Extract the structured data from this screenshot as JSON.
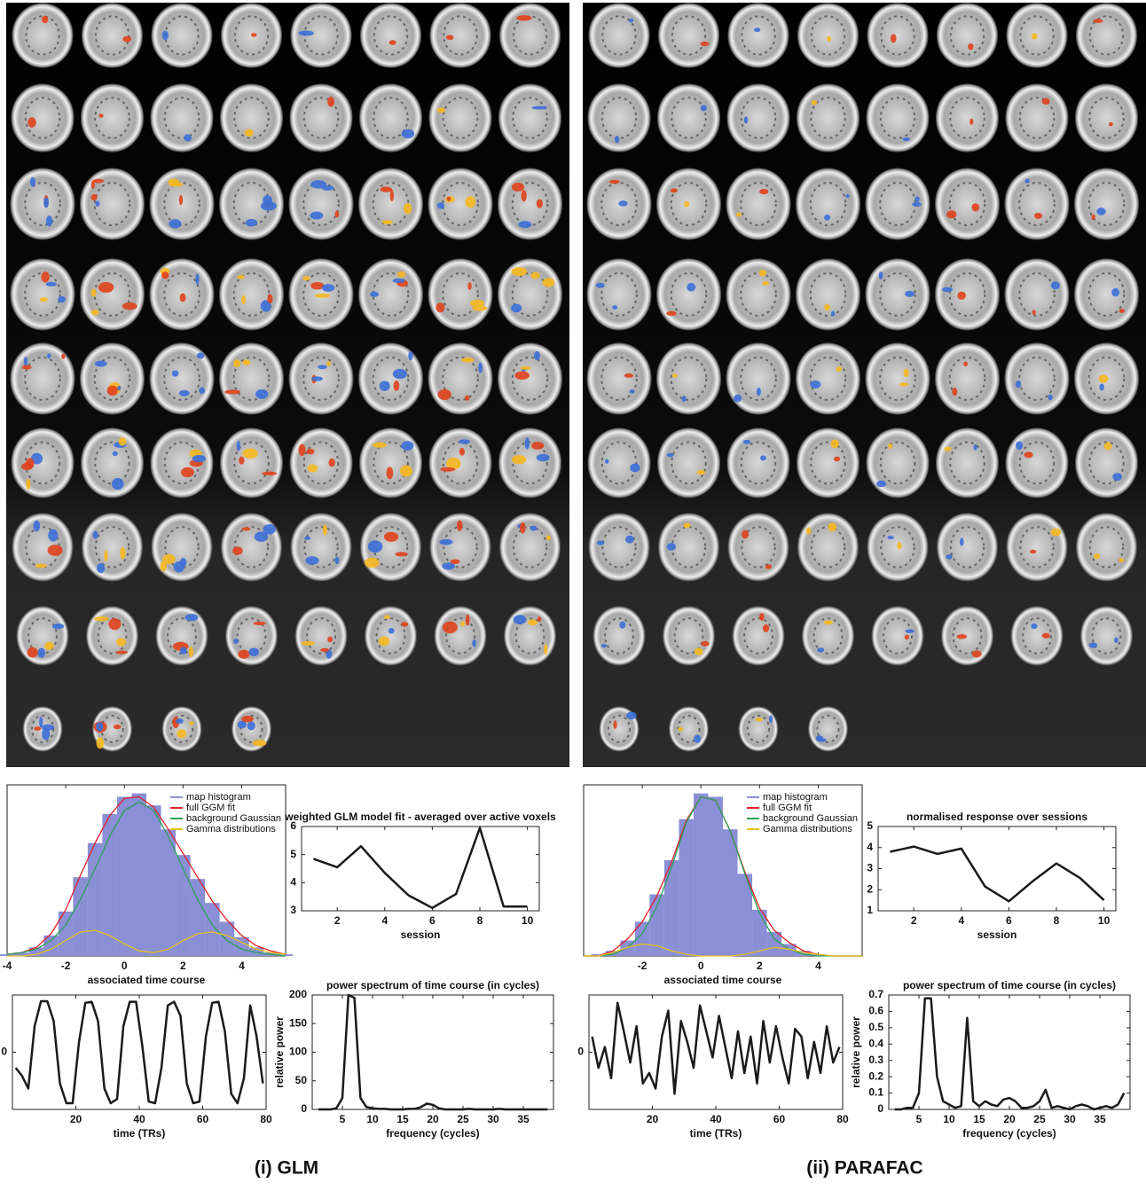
{
  "captions": [
    "(i) GLM",
    "(ii) PARAFAC"
  ],
  "chart_data": [
    {
      "type": "bar",
      "xlabel": "associated time course",
      "x": [
        -4,
        -3.5,
        -3,
        -2.5,
        -2,
        -1.5,
        -1,
        -0.5,
        0,
        0.5,
        1,
        1.5,
        2,
        2.5,
        3,
        3.5,
        4,
        4.5,
        5,
        5.5
      ],
      "xlim": [
        -4,
        5.5
      ],
      "xticks": [
        -4,
        -2,
        0,
        2,
        4
      ],
      "ylim": [
        0,
        1
      ],
      "legend": "upper right",
      "series": [
        {
          "name": "map histogram",
          "color": "#8b8fd6",
          "type": "bar",
          "values": [
            0.01,
            0.02,
            0.05,
            0.12,
            0.26,
            0.46,
            0.66,
            0.83,
            0.93,
            0.95,
            0.88,
            0.74,
            0.59,
            0.45,
            0.31,
            0.2,
            0.11,
            0.05,
            0.02,
            0.01
          ]
        },
        {
          "name": "full GGM fit",
          "color": "#e0202a",
          "type": "line",
          "values": [
            0.01,
            0.02,
            0.05,
            0.13,
            0.27,
            0.47,
            0.66,
            0.82,
            0.92,
            0.93,
            0.87,
            0.74,
            0.6,
            0.46,
            0.32,
            0.21,
            0.12,
            0.06,
            0.03,
            0.01
          ]
        },
        {
          "name": "background Gaussian",
          "color": "#2aa05a",
          "type": "line",
          "values": [
            0.01,
            0.02,
            0.04,
            0.09,
            0.18,
            0.33,
            0.51,
            0.7,
            0.85,
            0.9,
            0.85,
            0.7,
            0.51,
            0.33,
            0.18,
            0.09,
            0.04,
            0.02,
            0.01,
            0
          ]
        },
        {
          "name": "Gamma distributions",
          "color": "#e8c020",
          "type": "line",
          "values": [
            0,
            0,
            0.01,
            0.04,
            0.09,
            0.14,
            0.15,
            0.12,
            0.07,
            0.03,
            0.02,
            0.04,
            0.09,
            0.13,
            0.14,
            0.12,
            0.08,
            0.04,
            0.02,
            0.01
          ]
        }
      ]
    },
    {
      "type": "line",
      "title": "weighted GLM model fit - averaged over active voxels",
      "xlabel": "session",
      "x": [
        1,
        2,
        3,
        4,
        5,
        6,
        7,
        8,
        9,
        10
      ],
      "values": [
        4.85,
        4.55,
        5.3,
        4.35,
        3.55,
        3.1,
        3.6,
        5.95,
        3.15,
        3.15
      ],
      "color": "#1a1a1a",
      "xlim": [
        0.5,
        10.5
      ],
      "xticks": [
        2,
        4,
        6,
        8,
        10
      ],
      "ylim": [
        3,
        6
      ],
      "yticks": [
        3,
        4,
        5,
        6
      ]
    },
    {
      "type": "line",
      "xlabel": "time (TRs)",
      "x": [
        1,
        3,
        5,
        7,
        9,
        11,
        13,
        15,
        17,
        19,
        21,
        23,
        25,
        27,
        29,
        31,
        33,
        35,
        37,
        39,
        41,
        43,
        45,
        47,
        49,
        51,
        53,
        55,
        57,
        59,
        61,
        63,
        65,
        67,
        69,
        71,
        73,
        75,
        77,
        79
      ],
      "values": [
        -0.3,
        -0.45,
        -0.7,
        0.5,
        0.98,
        0.98,
        0.6,
        -0.6,
        -0.98,
        -0.98,
        0.2,
        0.95,
        0.97,
        0.6,
        -0.7,
        -0.98,
        -0.9,
        0.5,
        0.97,
        0.97,
        0.1,
        -0.95,
        -0.98,
        -0.3,
        0.9,
        0.97,
        0.7,
        -0.6,
        -0.98,
        -0.95,
        0.3,
        0.95,
        0.97,
        0.4,
        -0.8,
        -0.98,
        -0.5,
        0.9,
        0.3,
        -0.6
      ],
      "color": "#1a1a1a",
      "xlim": [
        0,
        80
      ],
      "xticks": [
        20,
        40,
        60,
        80
      ],
      "ylim": [
        -1.1,
        1.1
      ],
      "yticks": [
        0
      ]
    },
    {
      "type": "line",
      "title": "power spectrum of time course (in cycles)",
      "xlabel": "frequency (cycles)",
      "ylabel": "relative power",
      "x": [
        1,
        2,
        3,
        4,
        5,
        6,
        7,
        8,
        9,
        10,
        11,
        12,
        13,
        14,
        15,
        16,
        17,
        18,
        19,
        20,
        21,
        22,
        23,
        24,
        25,
        26,
        27,
        28,
        29,
        30,
        31,
        32,
        33,
        34,
        35,
        36,
        37,
        38,
        39
      ],
      "values": [
        0,
        0,
        0,
        2,
        20,
        200,
        195,
        20,
        4,
        2,
        1,
        1,
        0,
        0,
        0,
        1,
        1,
        4,
        10,
        8,
        2,
        0,
        0,
        0,
        0,
        1,
        0,
        0,
        0,
        0,
        1,
        0,
        0,
        0,
        0,
        0,
        0,
        0,
        0
      ],
      "color": "#1a1a1a",
      "xlim": [
        0,
        40
      ],
      "xticks": [
        5,
        10,
        15,
        20,
        25,
        30,
        35
      ],
      "ylim": [
        0,
        200
      ],
      "yticks": [
        0,
        50,
        100,
        150,
        200
      ]
    },
    {
      "type": "bar",
      "xlabel": "associated time course",
      "x": [
        -4,
        -3.5,
        -3,
        -2.5,
        -2,
        -1.5,
        -1,
        -0.5,
        0,
        0.5,
        1,
        1.5,
        2,
        2.5,
        3,
        3.5,
        4,
        4.5,
        5,
        5.5
      ],
      "xlim": [
        -4,
        5.5
      ],
      "xticks": [
        -2,
        0,
        2,
        4
      ],
      "ylim": [
        0,
        1
      ],
      "legend": "upper right",
      "series": [
        {
          "name": "map histogram",
          "color": "#8b8fd6",
          "type": "bar",
          "values": [
            0,
            0.01,
            0.03,
            0.09,
            0.2,
            0.36,
            0.56,
            0.8,
            0.95,
            0.93,
            0.74,
            0.48,
            0.27,
            0.14,
            0.07,
            0.03,
            0.01,
            0,
            0,
            0
          ]
        },
        {
          "name": "full GGM fit",
          "color": "#e0202a",
          "type": "line",
          "values": [
            0,
            0,
            0.03,
            0.1,
            0.2,
            0.35,
            0.55,
            0.79,
            0.93,
            0.91,
            0.73,
            0.49,
            0.28,
            0.15,
            0.08,
            0.03,
            0.01,
            0,
            0,
            0
          ]
        },
        {
          "name": "background Gaussian",
          "color": "#2aa05a",
          "type": "line",
          "values": [
            0,
            0,
            0.01,
            0.05,
            0.13,
            0.29,
            0.52,
            0.78,
            0.93,
            0.91,
            0.73,
            0.48,
            0.25,
            0.1,
            0.04,
            0.01,
            0,
            0,
            0,
            0
          ]
        },
        {
          "name": "Gamma distributions",
          "color": "#e8c020",
          "type": "line",
          "values": [
            0,
            0,
            0.02,
            0.05,
            0.07,
            0.06,
            0.03,
            0.01,
            0,
            0,
            0,
            0.01,
            0.03,
            0.05,
            0.04,
            0.02,
            0.01,
            0,
            0,
            0
          ]
        }
      ]
    },
    {
      "type": "line",
      "title": "normalised response over sessions",
      "xlabel": "session",
      "x": [
        1,
        2,
        3,
        4,
        5,
        6,
        7,
        8,
        9,
        10
      ],
      "values": [
        3.8,
        4.05,
        3.7,
        3.95,
        2.15,
        1.45,
        2.4,
        3.25,
        2.55,
        1.5
      ],
      "color": "#1a1a1a",
      "xlim": [
        0.5,
        10.5
      ],
      "xticks": [
        2,
        4,
        6,
        8,
        10
      ],
      "ylim": [
        1,
        5
      ],
      "yticks": [
        1,
        2,
        3,
        4,
        5
      ]
    },
    {
      "type": "line",
      "xlabel": "time (TRs)",
      "x": [
        1,
        3,
        5,
        7,
        9,
        11,
        13,
        15,
        17,
        19,
        21,
        23,
        25,
        27,
        29,
        31,
        33,
        35,
        37,
        39,
        41,
        43,
        45,
        47,
        49,
        51,
        53,
        55,
        57,
        59,
        61,
        63,
        65,
        67,
        69,
        71,
        73,
        75,
        77,
        79
      ],
      "values": [
        0.3,
        -0.3,
        0.1,
        -0.5,
        0.95,
        0.4,
        -0.2,
        0.5,
        -0.6,
        -0.4,
        -0.7,
        0.3,
        0.8,
        -0.8,
        0.6,
        0.2,
        -0.3,
        0.9,
        0.4,
        -0.1,
        0.7,
        0.1,
        -0.5,
        0.4,
        -0.4,
        0.3,
        -0.6,
        0.6,
        -0.2,
        0.5,
        -0.1,
        -0.6,
        0.45,
        0.3,
        -0.5,
        0.2,
        -0.4,
        0.5,
        -0.2,
        0.1
      ],
      "color": "#1a1a1a",
      "xlim": [
        0,
        80
      ],
      "xticks": [
        20,
        40,
        60,
        80
      ],
      "ylim": [
        -1.1,
        1.1
      ],
      "yticks": [
        0
      ]
    },
    {
      "type": "line",
      "title": "power spectrum of time course (in cycles)",
      "xlabel": "frequency (cycles)",
      "ylabel": "relative power",
      "x": [
        1,
        2,
        3,
        4,
        5,
        6,
        7,
        8,
        9,
        10,
        11,
        12,
        13,
        14,
        15,
        16,
        17,
        18,
        19,
        20,
        21,
        22,
        23,
        24,
        25,
        26,
        27,
        28,
        29,
        30,
        31,
        32,
        33,
        34,
        35,
        36,
        37,
        38,
        39
      ],
      "values": [
        0,
        0,
        0.01,
        0.01,
        0.1,
        0.68,
        0.68,
        0.2,
        0.05,
        0.03,
        0.01,
        0.02,
        0.56,
        0.05,
        0.02,
        0.05,
        0.03,
        0.02,
        0.06,
        0.07,
        0.05,
        0.01,
        0.01,
        0.02,
        0.05,
        0.12,
        0.01,
        0.02,
        0.01,
        0,
        0.02,
        0.03,
        0.02,
        0,
        0.01,
        0.02,
        0.01,
        0.03,
        0.1
      ],
      "color": "#1a1a1a",
      "xlim": [
        0,
        40
      ],
      "xticks": [
        5,
        10,
        15,
        20,
        25,
        30,
        35
      ],
      "ylim": [
        0,
        0.7
      ],
      "yticks": [
        0,
        0.1,
        0.2,
        0.3,
        0.4,
        0.5,
        0.6,
        0.7
      ]
    }
  ]
}
